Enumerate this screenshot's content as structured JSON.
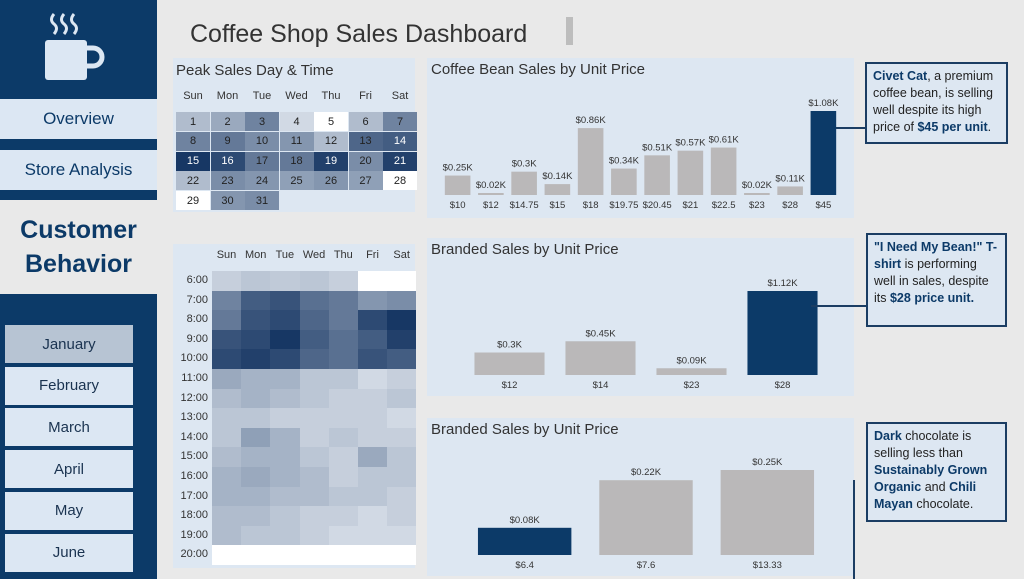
{
  "sidebar": {
    "nav": [
      {
        "label": "Overview"
      },
      {
        "label": "Store Analysis"
      }
    ],
    "section_title_line1": "Customer",
    "section_title_line2": "Behavior",
    "months": [
      {
        "label": "January",
        "active": true
      },
      {
        "label": "February",
        "active": false
      },
      {
        "label": "March",
        "active": false
      },
      {
        "label": "April",
        "active": false
      },
      {
        "label": "May",
        "active": false
      },
      {
        "label": "June",
        "active": false
      }
    ]
  },
  "header": {
    "title": "Coffee Shop Sales Dashboard"
  },
  "calendar": {
    "title": "Peak Sales Day & Time",
    "weekdays": [
      "Sun",
      "Mon",
      "Tue",
      "Wed",
      "Thu",
      "Fri",
      "Sat"
    ],
    "weeks": [
      [
        1,
        2,
        3,
        4,
        5,
        6,
        7
      ],
      [
        8,
        9,
        10,
        11,
        12,
        13,
        14
      ],
      [
        15,
        16,
        17,
        18,
        19,
        20,
        21
      ],
      [
        22,
        23,
        24,
        25,
        26,
        27,
        28
      ],
      [
        29,
        30,
        31,
        null,
        null,
        null,
        null
      ]
    ],
    "intensity": [
      [
        0.25,
        0.35,
        0.55,
        0.1,
        0.02,
        0.25,
        0.55
      ],
      [
        0.55,
        0.6,
        0.5,
        0.45,
        0.25,
        0.7,
        0.75
      ],
      [
        0.95,
        0.85,
        0.6,
        0.6,
        0.9,
        0.5,
        0.9
      ],
      [
        0.25,
        0.5,
        0.45,
        0.4,
        0.45,
        0.4,
        0.05
      ],
      [
        0.05,
        0.45,
        0.5,
        null,
        null,
        null,
        null
      ]
    ]
  },
  "heatmap": {
    "weekdays": [
      "Sun",
      "Mon",
      "Tue",
      "Wed",
      "Thu",
      "Fri",
      "Sat"
    ],
    "hours": [
      "6:00",
      "7:00",
      "8:00",
      "9:00",
      "10:00",
      "11:00",
      "12:00",
      "13:00",
      "14:00",
      "15:00",
      "16:00",
      "17:00",
      "18:00",
      "19:00",
      "20:00"
    ],
    "values": [
      [
        0.15,
        0.2,
        0.18,
        0.2,
        0.15,
        0.0,
        0.0
      ],
      [
        0.55,
        0.75,
        0.8,
        0.65,
        0.6,
        0.45,
        0.5
      ],
      [
        0.6,
        0.8,
        0.85,
        0.7,
        0.6,
        0.85,
        0.95
      ],
      [
        0.8,
        0.85,
        0.95,
        0.75,
        0.65,
        0.75,
        0.9
      ],
      [
        0.85,
        0.9,
        0.85,
        0.7,
        0.65,
        0.8,
        0.75
      ],
      [
        0.35,
        0.3,
        0.3,
        0.2,
        0.2,
        0.1,
        0.15
      ],
      [
        0.25,
        0.3,
        0.25,
        0.2,
        0.15,
        0.15,
        0.2
      ],
      [
        0.2,
        0.2,
        0.15,
        0.15,
        0.15,
        0.15,
        0.1
      ],
      [
        0.2,
        0.4,
        0.3,
        0.15,
        0.2,
        0.15,
        0.15
      ],
      [
        0.25,
        0.3,
        0.3,
        0.2,
        0.15,
        0.35,
        0.2
      ],
      [
        0.3,
        0.35,
        0.3,
        0.25,
        0.15,
        0.2,
        0.2
      ],
      [
        0.3,
        0.3,
        0.25,
        0.25,
        0.2,
        0.2,
        0.15
      ],
      [
        0.25,
        0.25,
        0.2,
        0.15,
        0.15,
        0.1,
        0.15
      ],
      [
        0.25,
        0.2,
        0.2,
        0.15,
        0.1,
        0.1,
        0.1
      ],
      [
        0.0,
        0.0,
        0.0,
        0.0,
        0.0,
        0.0,
        0.0
      ]
    ]
  },
  "chart_data": [
    {
      "type": "bar",
      "title": "Coffee Bean Sales by Unit Price",
      "categories": [
        "$10",
        "$12",
        "$14.75",
        "$15",
        "$18",
        "$19.75",
        "$20.45",
        "$21",
        "$22.5",
        "$23",
        "$28",
        "$45"
      ],
      "values": [
        0.25,
        0.02,
        0.3,
        0.14,
        0.86,
        0.34,
        0.51,
        0.57,
        0.61,
        0.02,
        0.11,
        1.08
      ],
      "labels": [
        "$0.25K",
        "$0.02K",
        "$0.3K",
        "$0.14K",
        "$0.86K",
        "$0.34K",
        "$0.51K",
        "$0.57K",
        "$0.61K",
        "$0.02K",
        "$0.11K",
        "$1.08K"
      ],
      "highlight_index": 11,
      "ylim": [
        0,
        1.08
      ]
    },
    {
      "type": "bar",
      "title": "Branded Sales by Unit Price",
      "categories": [
        "$12",
        "$14",
        "$23",
        "$28"
      ],
      "values": [
        0.3,
        0.45,
        0.09,
        1.12
      ],
      "labels": [
        "$0.3K",
        "$0.45K",
        "$0.09K",
        "$1.12K"
      ],
      "highlight_index": 3,
      "ylim": [
        0,
        1.12
      ]
    },
    {
      "type": "bar",
      "title": "Branded Sales by Unit Price",
      "categories": [
        "$6.4",
        "$7.6",
        "$13.33"
      ],
      "values": [
        0.08,
        0.22,
        0.25
      ],
      "labels": [
        "$0.08K",
        "$0.22K",
        "$0.25K"
      ],
      "highlight_index": 0,
      "ylim": [
        0,
        0.25
      ]
    }
  ],
  "callouts": [
    {
      "bold1": "Civet Cat",
      "text1": ", a premium coffee bean, is selling well despite its high price of ",
      "bold2": "$45 per unit",
      "text2": "."
    },
    {
      "bold1": "\"I Need My Bean!\" T-shirt",
      "text1": " is performing well in sales, despite its ",
      "bold2": "$28 price unit.",
      "text2": ""
    },
    {
      "bold1": "Dark",
      "text1": " chocolate is selling less than ",
      "bold2": "Sustainably Grown Organic",
      "text2": " and ",
      "bold3": "Chili Mayan",
      "text3": " chocolate."
    }
  ],
  "colors": {
    "highlight": "#0c3a68",
    "bar": "#bab8b9",
    "sidebar": "#0c3a68",
    "panel": "#dde7f2"
  },
  "icons": {
    "logo": "coffee-mug-icon"
  }
}
